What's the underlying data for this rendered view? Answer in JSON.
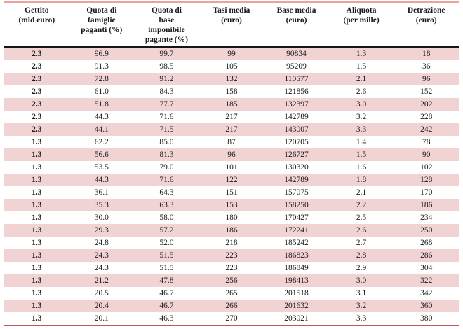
{
  "colors": {
    "row_stripe": "#f2d3d3",
    "top_border": "#e9a49e",
    "header_separator": "#151515",
    "bottom_border": "#bf5a55",
    "text": "#1a1a1a",
    "background": "#ffffff"
  },
  "table": {
    "headers": [
      "Gettito\n(mld euro)",
      "Quota di\nfamiglie\npaganti (%)",
      "Quota di\nbase\nimponibile\npagante (%)",
      "Tasi media\n(euro)",
      "Base media\n(euro)",
      "Aliquota\n(per mille)",
      "Detrazione\n(euro)"
    ],
    "rows": [
      [
        "2.3",
        "96.9",
        "99.7",
        "99",
        "90834",
        "1.3",
        "18"
      ],
      [
        "2.3",
        "91.3",
        "98.5",
        "105",
        "95209",
        "1.5",
        "36"
      ],
      [
        "2.3",
        "72.8",
        "91.2",
        "132",
        "110577",
        "2.1",
        "96"
      ],
      [
        "2.3",
        "61.0",
        "84.3",
        "158",
        "121856",
        "2.6",
        "152"
      ],
      [
        "2.3",
        "51.8",
        "77.7",
        "185",
        "132397",
        "3.0",
        "202"
      ],
      [
        "2.3",
        "44.3",
        "71.6",
        "217",
        "142789",
        "3.2",
        "228"
      ],
      [
        "2.3",
        "44.1",
        "71.5",
        "217",
        "143007",
        "3.3",
        "242"
      ],
      [
        "1.3",
        "62.2",
        "85.0",
        "87",
        "120705",
        "1.4",
        "78"
      ],
      [
        "1.3",
        "56.6",
        "81.3",
        "96",
        "126727",
        "1.5",
        "90"
      ],
      [
        "1.3",
        "53.5",
        "79.0",
        "101",
        "130320",
        "1.6",
        "102"
      ],
      [
        "1.3",
        "44.3",
        "71.6",
        "122",
        "142789",
        "1.8",
        "128"
      ],
      [
        "1.3",
        "36.1",
        "64.3",
        "151",
        "157075",
        "2.1",
        "170"
      ],
      [
        "1.3",
        "35.3",
        "63.3",
        "153",
        "158250",
        "2.2",
        "186"
      ],
      [
        "1.3",
        "30.0",
        "58.0",
        "180",
        "170427",
        "2.5",
        "234"
      ],
      [
        "1.3",
        "29.3",
        "57.2",
        "186",
        "172241",
        "2.6",
        "250"
      ],
      [
        "1.3",
        "24.8",
        "52.0",
        "218",
        "185242",
        "2.7",
        "268"
      ],
      [
        "1.3",
        "24.3",
        "51.5",
        "223",
        "186823",
        "2.8",
        "286"
      ],
      [
        "1.3",
        "24.3",
        "51.5",
        "223",
        "186849",
        "2.9",
        "304"
      ],
      [
        "1.3",
        "21.2",
        "47.8",
        "256",
        "198413",
        "3.0",
        "322"
      ],
      [
        "1.3",
        "20.5",
        "46.7",
        "265",
        "201518",
        "3.1",
        "342"
      ],
      [
        "1.3",
        "20.4",
        "46.7",
        "266",
        "201632",
        "3.2",
        "360"
      ],
      [
        "1.3",
        "20.1",
        "46.3",
        "270",
        "203021",
        "3.3",
        "380"
      ]
    ]
  }
}
